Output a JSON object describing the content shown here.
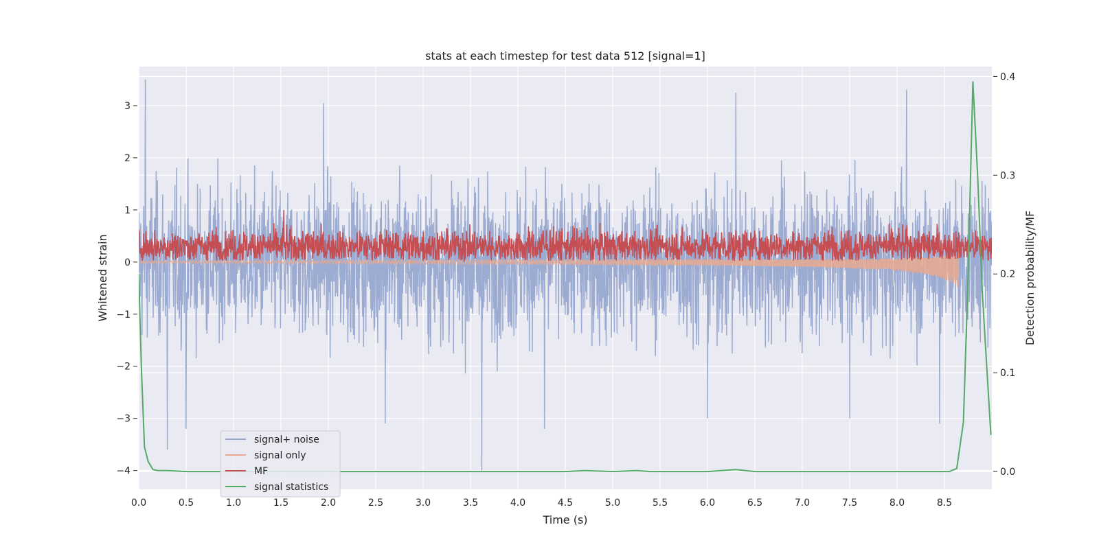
{
  "chart_data": {
    "type": "line",
    "title": "stats at each timestep for test data 512 [signal=1]",
    "xlabel": "Time (s)",
    "ylabel": "Whitened strain",
    "y2label": "Detection probability/MF",
    "xlim": [
      0.0,
      9.0
    ],
    "ylim": [
      -4.36,
      3.75
    ],
    "y2lim": [
      -0.018,
      0.41
    ],
    "xticks": [
      "0.0",
      "0.5",
      "1.0",
      "1.5",
      "2.0",
      "2.5",
      "3.0",
      "3.5",
      "4.0",
      "4.5",
      "5.0",
      "5.5",
      "6.0",
      "6.5",
      "7.0",
      "7.5",
      "8.0",
      "8.5"
    ],
    "yticks": [
      "−4",
      "−3",
      "−2",
      "−1",
      "0",
      "1",
      "2",
      "3"
    ],
    "y2ticks": [
      "0.0",
      "0.1",
      "0.2",
      "0.3",
      "0.4"
    ],
    "grid": true,
    "legend_position": "lower-left",
    "series": [
      {
        "name": "signal+ noise",
        "color": "#97a8cf",
        "axis": "left",
        "description": "whitened strain, noise band roughly -2.2 to 2.3 with spikes",
        "band": {
          "min": -2.2,
          "max": 2.3
        },
        "spikes": [
          [
            0.07,
            3.5
          ],
          [
            0.3,
            -3.6
          ],
          [
            0.5,
            -3.2
          ],
          [
            1.95,
            3.05
          ],
          [
            2.6,
            -3.1
          ],
          [
            3.62,
            -4.0
          ],
          [
            4.28,
            -3.2
          ],
          [
            6.3,
            3.25
          ],
          [
            6.0,
            -3.0
          ],
          [
            7.5,
            -3.0
          ],
          [
            8.1,
            3.3
          ],
          [
            8.45,
            -3.1
          ]
        ]
      },
      {
        "name": "signal only",
        "color": "#e9a98f",
        "axis": "left",
        "description": "chirp waveform growing until merger near 8.65 s",
        "x": [
          0.0,
          2.0,
          4.0,
          6.0,
          7.0,
          7.5,
          8.0,
          8.3,
          8.5,
          8.6,
          8.65
        ],
        "envelope": [
          0.02,
          0.03,
          0.04,
          0.05,
          0.07,
          0.09,
          0.12,
          0.16,
          0.22,
          0.3,
          0.35
        ],
        "center": [
          0.0,
          0.0,
          0.0,
          -0.01,
          -0.02,
          -0.03,
          -0.05,
          -0.07,
          -0.1,
          -0.12,
          -0.15
        ]
      },
      {
        "name": "MF",
        "color": "#c44e52",
        "axis": "left",
        "description": "matched filter output, values between about 0.0 and 1.0",
        "band": {
          "min": 0.02,
          "max": 0.85
        },
        "peak": [
          1.53,
          1.0
        ]
      },
      {
        "name": "signal statistics",
        "color": "#55a868",
        "axis": "right",
        "x": [
          0.0,
          0.03,
          0.06,
          0.1,
          0.15,
          0.2,
          0.3,
          0.5,
          1.0,
          2.0,
          3.0,
          4.0,
          4.5,
          4.7,
          5.0,
          5.25,
          5.4,
          6.0,
          6.3,
          6.5,
          7.0,
          8.0,
          8.55,
          8.63,
          8.7,
          8.75,
          8.8,
          8.85,
          8.9,
          8.95,
          8.99
        ],
        "y": [
          0.2,
          0.1,
          0.025,
          0.01,
          0.002,
          0.001,
          0.001,
          0.0,
          0.0,
          0.0,
          0.0,
          0.0,
          0.0,
          0.001,
          0.0,
          0.001,
          0.0,
          0.0,
          0.002,
          0.0,
          0.0,
          0.0,
          0.0,
          0.003,
          0.05,
          0.2,
          0.395,
          0.3,
          0.18,
          0.1,
          0.037
        ]
      }
    ]
  }
}
